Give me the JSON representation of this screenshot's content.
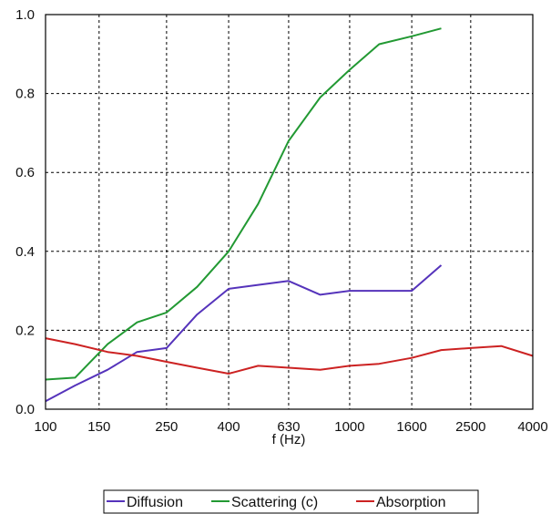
{
  "chart_data": {
    "type": "line",
    "title": "",
    "xlabel": "f (Hz)",
    "ylabel": "",
    "x_scale": "log",
    "xlim": [
      100,
      4000
    ],
    "ylim": [
      0.0,
      1.0
    ],
    "grid": true,
    "legend_position": "bottom",
    "x_tick_labels": [
      "100",
      "150",
      "250",
      "400",
      "630",
      "1000",
      "1600",
      "2500",
      "4000"
    ],
    "y_tick_labels": [
      "0.0",
      "0.2",
      "0.4",
      "0.6",
      "0.8",
      "1.0"
    ],
    "series": [
      {
        "name": "Diffusion",
        "color": "#5533bb",
        "x": [
          100,
          125,
          160,
          200,
          250,
          315,
          400,
          500,
          630,
          800,
          1000,
          1250,
          1600,
          2000
        ],
        "y": [
          0.02,
          0.06,
          0.1,
          0.145,
          0.155,
          0.24,
          0.305,
          0.315,
          0.325,
          0.29,
          0.3,
          0.3,
          0.3,
          0.365
        ]
      },
      {
        "name": "Scattering (c)",
        "color": "#229933",
        "x": [
          100,
          125,
          160,
          200,
          250,
          315,
          400,
          500,
          630,
          800,
          1000,
          1250,
          1600,
          2000
        ],
        "y": [
          0.075,
          0.08,
          0.165,
          0.22,
          0.245,
          0.31,
          0.4,
          0.52,
          0.68,
          0.79,
          0.86,
          0.925,
          0.945,
          0.965
        ]
      },
      {
        "name": "Absorption",
        "color": "#cc2222",
        "x": [
          100,
          125,
          160,
          200,
          250,
          315,
          400,
          500,
          630,
          800,
          1000,
          1250,
          1600,
          2000,
          2500,
          3150,
          4000
        ],
        "y": [
          0.18,
          0.165,
          0.145,
          0.135,
          0.12,
          0.105,
          0.09,
          0.11,
          0.105,
          0.1,
          0.11,
          0.115,
          0.13,
          0.15,
          0.155,
          0.16,
          0.135
        ]
      }
    ]
  }
}
